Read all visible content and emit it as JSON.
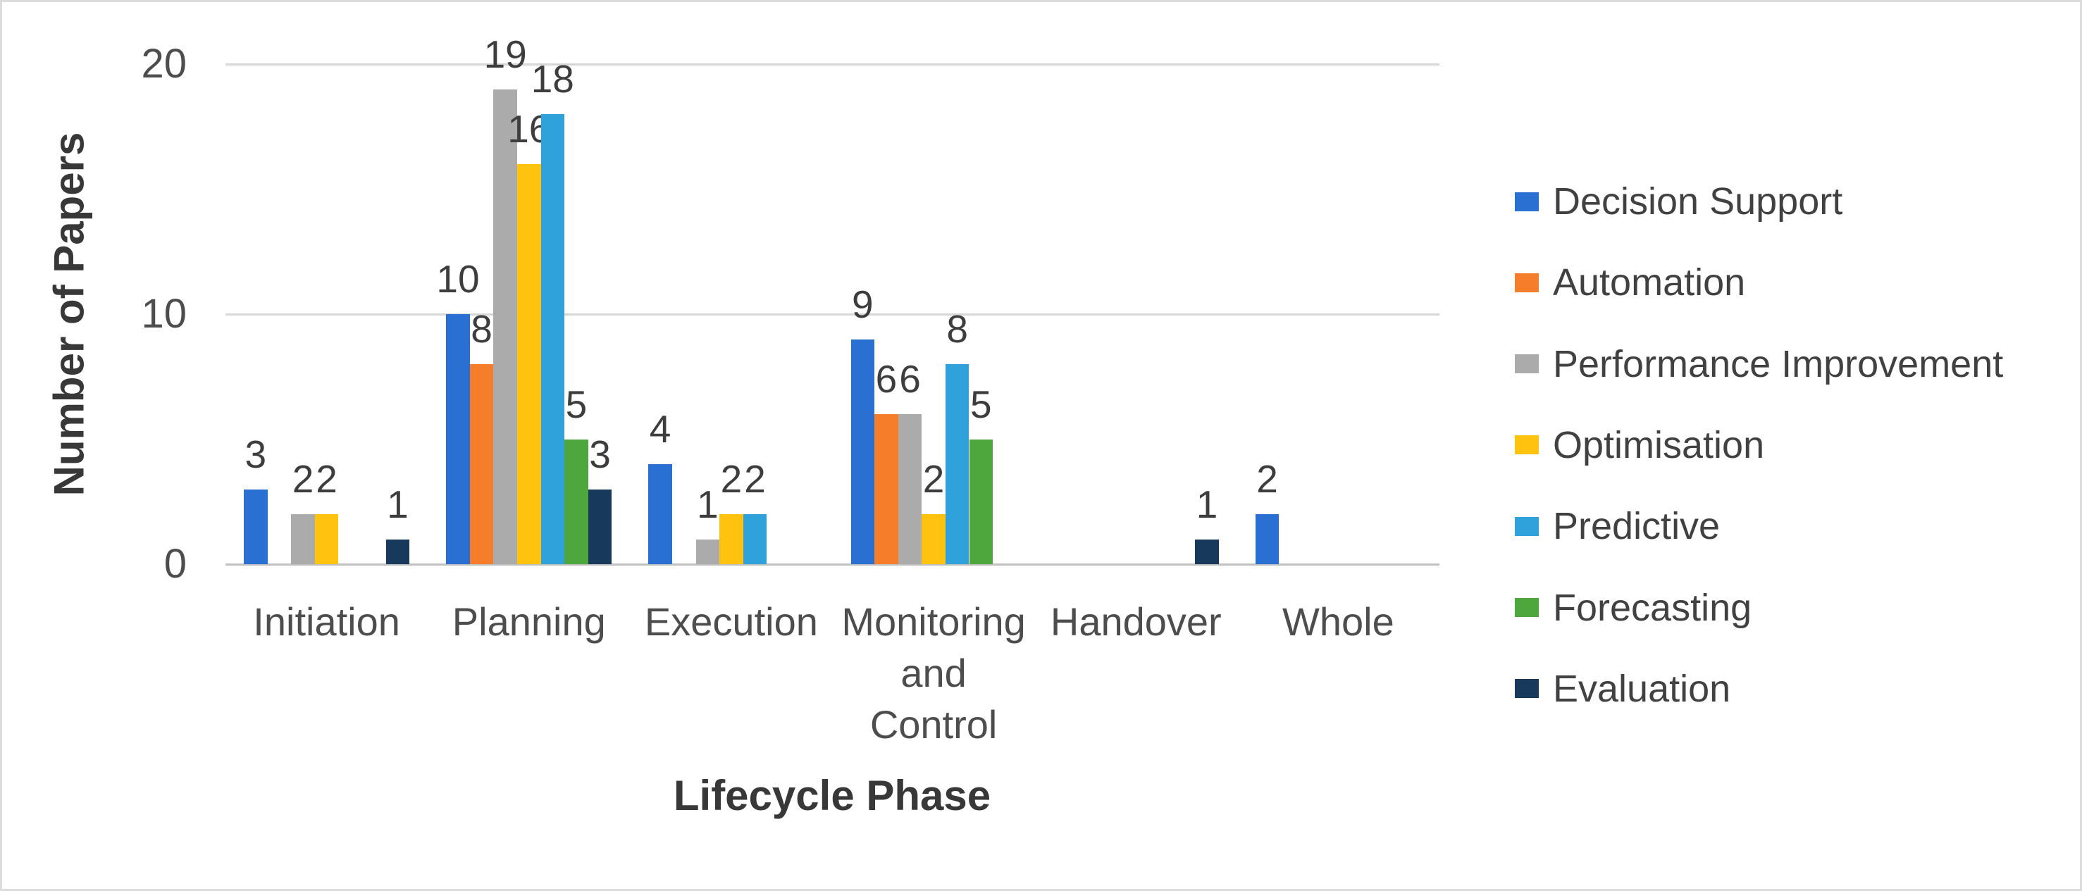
{
  "chart_data": {
    "type": "bar",
    "title": "",
    "xlabel": "Lifecycle Phase",
    "ylabel": "Number of Papers",
    "ylim": [
      0,
      20
    ],
    "yticks": [
      0,
      10,
      20
    ],
    "grid": "horizontal",
    "legend_position": "right",
    "categories": [
      "Initiation",
      "Planning",
      "Execution",
      "Monitoring\nand\nControl",
      "Handover",
      "Whole"
    ],
    "series": [
      {
        "name": "Decision Support",
        "color": "#2a6fd2",
        "values": [
          3,
          10,
          4,
          9,
          0,
          2
        ]
      },
      {
        "name": "Automation",
        "color": "#f67d29",
        "values": [
          0,
          8,
          0,
          6,
          0,
          0
        ]
      },
      {
        "name": "Performance Improvement",
        "color": "#ababab",
        "values": [
          2,
          19,
          1,
          6,
          0,
          0
        ]
      },
      {
        "name": "Optimisation",
        "color": "#ffc20e",
        "values": [
          2,
          16,
          2,
          2,
          0,
          0
        ]
      },
      {
        "name": "Predictive",
        "color": "#2fa2dc",
        "values": [
          0,
          18,
          2,
          8,
          0,
          0
        ]
      },
      {
        "name": "Forecasting",
        "color": "#4da73c",
        "values": [
          0,
          5,
          0,
          5,
          0,
          0
        ]
      },
      {
        "name": "Evaluation",
        "color": "#16395c",
        "values": [
          1,
          3,
          0,
          0,
          1,
          0
        ]
      }
    ],
    "data_labels_shown": true
  }
}
